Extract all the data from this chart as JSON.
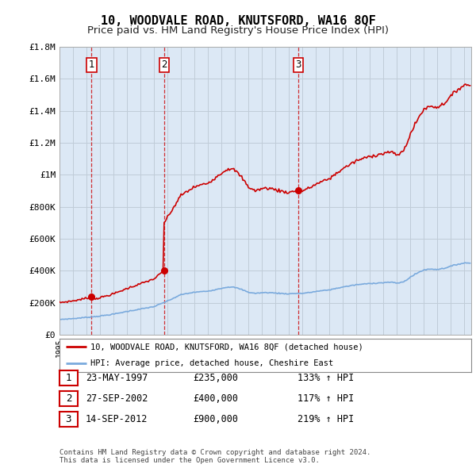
{
  "title": "10, WOODVALE ROAD, KNUTSFORD, WA16 8QF",
  "subtitle": "Price paid vs. HM Land Registry's House Price Index (HPI)",
  "ylim": [
    0,
    1800000
  ],
  "yticks": [
    0,
    200000,
    400000,
    600000,
    800000,
    1000000,
    1200000,
    1400000,
    1600000,
    1800000
  ],
  "ytick_labels": [
    "£0",
    "£200K",
    "£400K",
    "£600K",
    "£800K",
    "£1M",
    "£1.2M",
    "£1.4M",
    "£1.6M",
    "£1.8M"
  ],
  "sale_year_floats": [
    1997.375,
    2002.747,
    2012.708
  ],
  "sale_prices": [
    235000,
    400000,
    900000
  ],
  "sale_labels": [
    "1",
    "2",
    "3"
  ],
  "vline_color": "#cc0000",
  "property_line_color": "#cc0000",
  "hpi_line_color": "#7aaadd",
  "plot_bg_color": "#dce8f5",
  "legend_property": "10, WOODVALE ROAD, KNUTSFORD, WA16 8QF (detached house)",
  "legend_hpi": "HPI: Average price, detached house, Cheshire East",
  "table_rows": [
    [
      "1",
      "23-MAY-1997",
      "£235,000",
      "133% ↑ HPI"
    ],
    [
      "2",
      "27-SEP-2002",
      "£400,000",
      "117% ↑ HPI"
    ],
    [
      "3",
      "14-SEP-2012",
      "£900,000",
      "219% ↑ HPI"
    ]
  ],
  "footnote": "Contains HM Land Registry data © Crown copyright and database right 2024.\nThis data is licensed under the Open Government Licence v3.0.",
  "background_color": "#ffffff",
  "grid_color": "#c0ccd8",
  "title_fontsize": 11,
  "subtitle_fontsize": 9.5,
  "tick_fontsize": 8
}
